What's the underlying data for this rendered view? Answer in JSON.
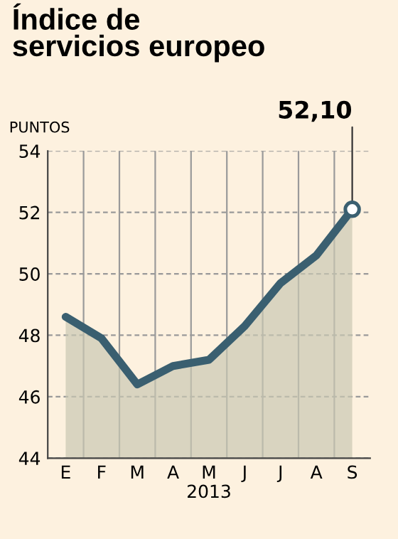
{
  "chart_data": {
    "type": "area",
    "title": "Índice de\nservicios europeo",
    "ylabel": "PUNTOS",
    "xlabel": "2013",
    "categories": [
      "E",
      "F",
      "M",
      "A",
      "M",
      "J",
      "J",
      "A",
      "S"
    ],
    "series": [
      {
        "color": "#3a5f70",
        "values": [
          48.6,
          47.9,
          46.4,
          47.0,
          47.2,
          48.3,
          49.7,
          50.6,
          52.1
        ],
        "value_labels": [
          null,
          null,
          null,
          null,
          null,
          null,
          null,
          null,
          "52,10"
        ]
      }
    ],
    "ylim": [
      44,
      54
    ],
    "yticks": [
      44,
      46,
      48,
      50,
      52,
      54
    ],
    "grid": true
  }
}
